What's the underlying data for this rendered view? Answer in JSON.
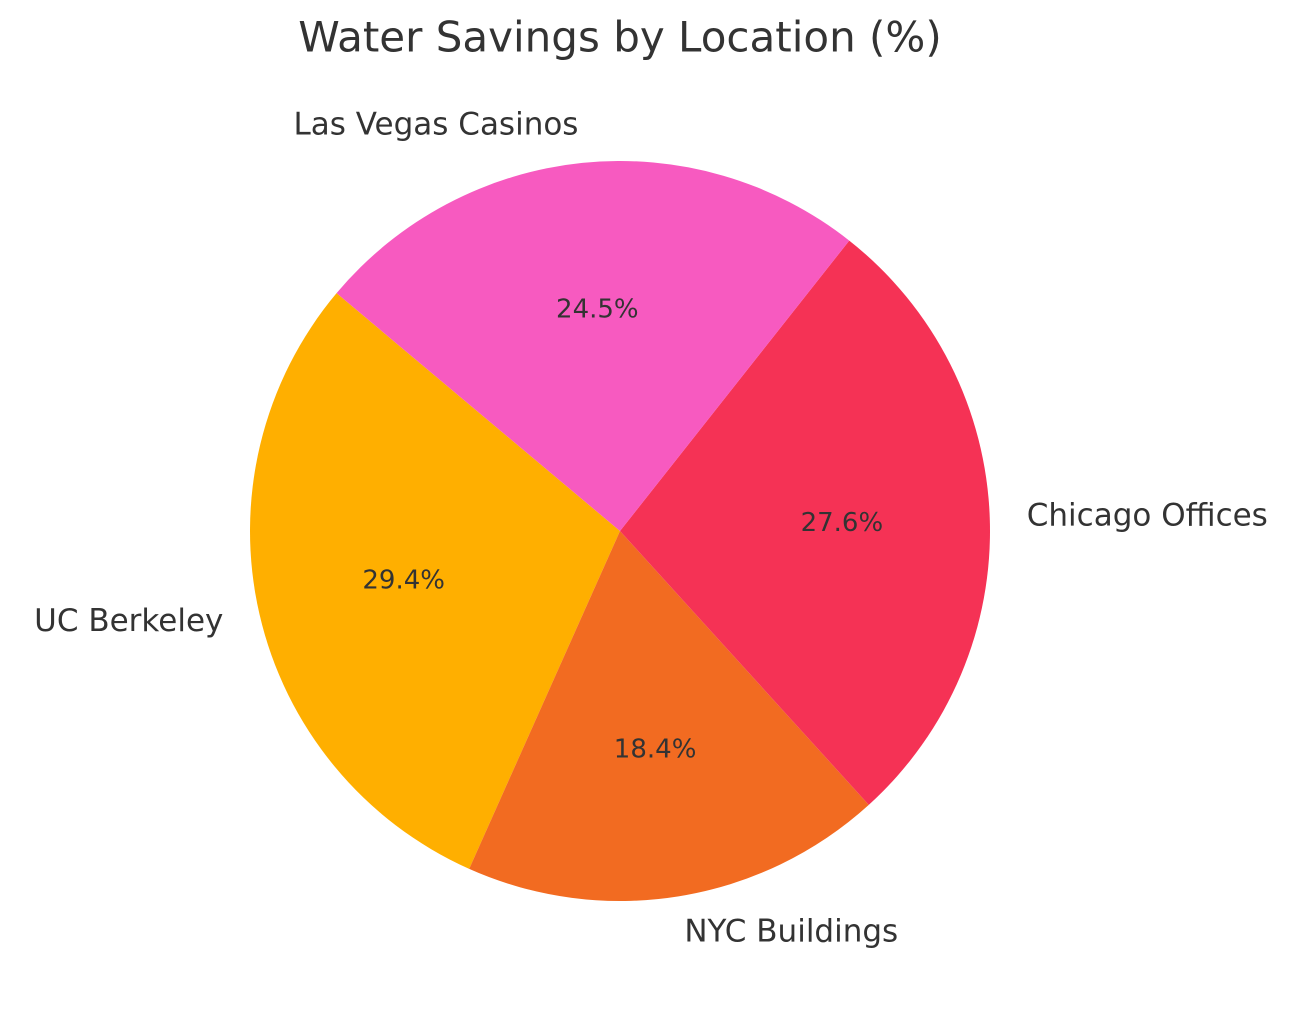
{
  "chart_data": {
    "type": "pie",
    "title": "Water Savings by Location (%)",
    "categories": [
      "UC Berkeley",
      "NYC Buildings",
      "Chicago Offices",
      "Las Vegas Casinos"
    ],
    "values": [
      29.4,
      18.4,
      27.6,
      24.5
    ],
    "value_labels": [
      "29.4%",
      "18.4%",
      "27.6%",
      "24.5%"
    ],
    "colors": [
      "#ffaf00",
      "#f26b21",
      "#f53255",
      "#f75ac0"
    ]
  }
}
